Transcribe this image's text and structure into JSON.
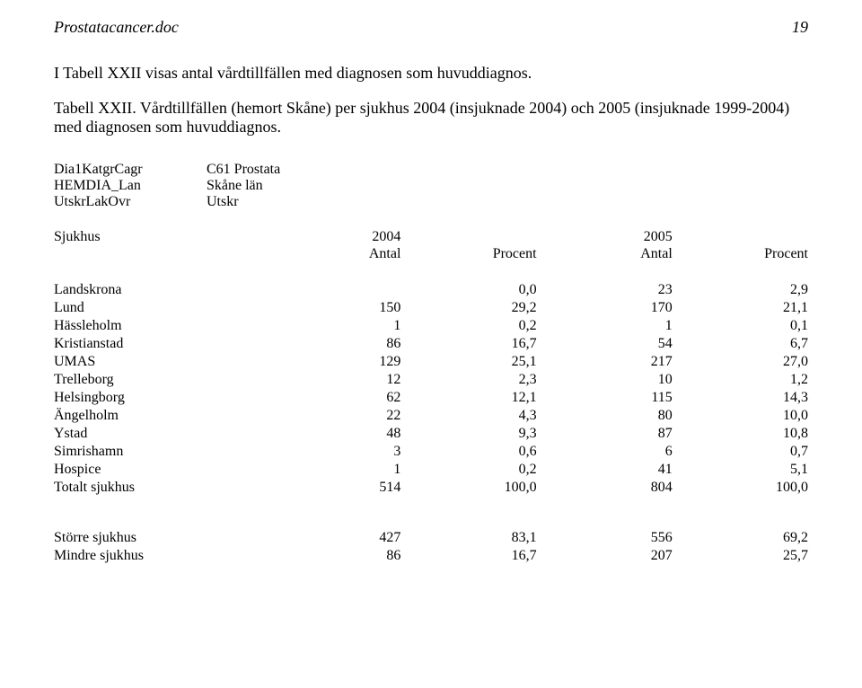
{
  "header": {
    "doc_title": "Prostatacancer.doc",
    "page_number": "19"
  },
  "body": {
    "paragraph": "I Tabell XXII visas antal vårdtillfällen med diagnosen som huvuddiagnos.",
    "subtitle": "Tabell XXII. Vårdtillfällen (hemort Skåne) per sjukhus 2004 (insjuknade 2004) och 2005 (insjuknade 1999-2004) med diagnosen som huvuddiagnos."
  },
  "meta": {
    "rows": [
      {
        "key": "Dia1KatgrCagr",
        "val": "C61 Prostata"
      },
      {
        "key": "HEMDIA_Lan",
        "val": "Skåne län"
      },
      {
        "key": "UtskrLakOvr",
        "val": "Utskr"
      }
    ]
  },
  "table": {
    "group_col_label": "Sjukhus",
    "year_a": "2004",
    "year_b": "2005",
    "col_antal": "Antal",
    "col_procent": "Procent",
    "rows": [
      {
        "label": "Landskrona",
        "a_n": "",
        "a_p": "0,0",
        "b_n": "23",
        "b_p": "2,9"
      },
      {
        "label": "Lund",
        "a_n": "150",
        "a_p": "29,2",
        "b_n": "170",
        "b_p": "21,1"
      },
      {
        "label": "Hässleholm",
        "a_n": "1",
        "a_p": "0,2",
        "b_n": "1",
        "b_p": "0,1"
      },
      {
        "label": "Kristianstad",
        "a_n": "86",
        "a_p": "16,7",
        "b_n": "54",
        "b_p": "6,7"
      },
      {
        "label": "UMAS",
        "a_n": "129",
        "a_p": "25,1",
        "b_n": "217",
        "b_p": "27,0"
      },
      {
        "label": "Trelleborg",
        "a_n": "12",
        "a_p": "2,3",
        "b_n": "10",
        "b_p": "1,2"
      },
      {
        "label": "Helsingborg",
        "a_n": "62",
        "a_p": "12,1",
        "b_n": "115",
        "b_p": "14,3"
      },
      {
        "label": "Ängelholm",
        "a_n": "22",
        "a_p": "4,3",
        "b_n": "80",
        "b_p": "10,0"
      },
      {
        "label": "Ystad",
        "a_n": "48",
        "a_p": "9,3",
        "b_n": "87",
        "b_p": "10,8"
      },
      {
        "label": "Simrishamn",
        "a_n": "3",
        "a_p": "0,6",
        "b_n": "6",
        "b_p": "0,7"
      },
      {
        "label": "Hospice",
        "a_n": "1",
        "a_p": "0,2",
        "b_n": "41",
        "b_p": "5,1"
      },
      {
        "label": "Totalt sjukhus",
        "a_n": "514",
        "a_p": "100,0",
        "b_n": "804",
        "b_p": "100,0"
      }
    ],
    "summary": [
      {
        "label": "Större sjukhus",
        "a_n": "427",
        "a_p": "83,1",
        "b_n": "556",
        "b_p": "69,2"
      },
      {
        "label": "Mindre sjukhus",
        "a_n": "86",
        "a_p": "16,7",
        "b_n": "207",
        "b_p": "25,7"
      }
    ]
  }
}
